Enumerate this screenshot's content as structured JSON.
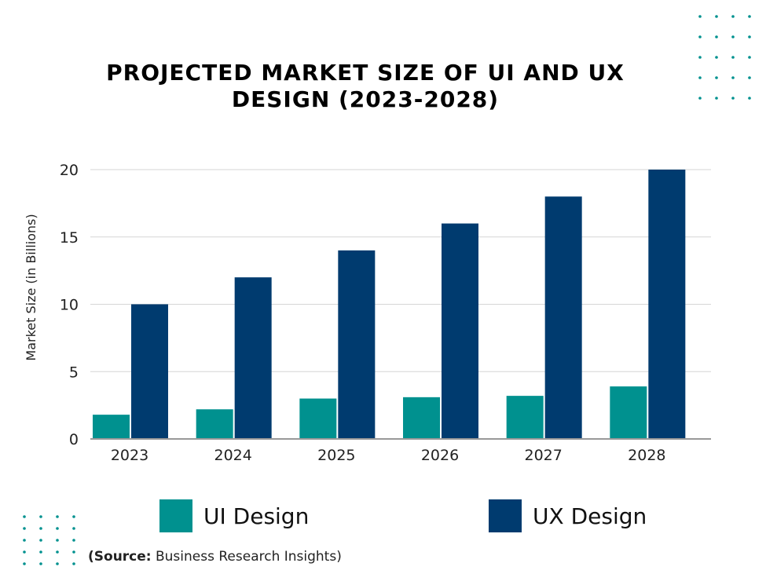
{
  "chart_data": {
    "type": "bar",
    "title": "PROJECTED MARKET SIZE OF UI AND UX DESIGN (2023-2028)",
    "xlabel": "",
    "ylabel": "Market Size (in Billions)",
    "categories": [
      "2023",
      "2024",
      "2025",
      "2026",
      "2027",
      "2028"
    ],
    "series": [
      {
        "name": "UI Design",
        "color": "#00918f",
        "values": [
          1.8,
          2.2,
          3.0,
          3.1,
          3.2,
          3.9
        ]
      },
      {
        "name": "UX Design",
        "color": "#003b6f",
        "values": [
          10,
          12,
          14,
          16,
          18,
          20
        ]
      }
    ],
    "ylim": [
      0,
      20
    ],
    "yticks": [
      0,
      5,
      10,
      15,
      20
    ],
    "grid": true,
    "legend": "bottom"
  },
  "source": {
    "label": "(Source:",
    "text": " Business Research Insights)"
  }
}
